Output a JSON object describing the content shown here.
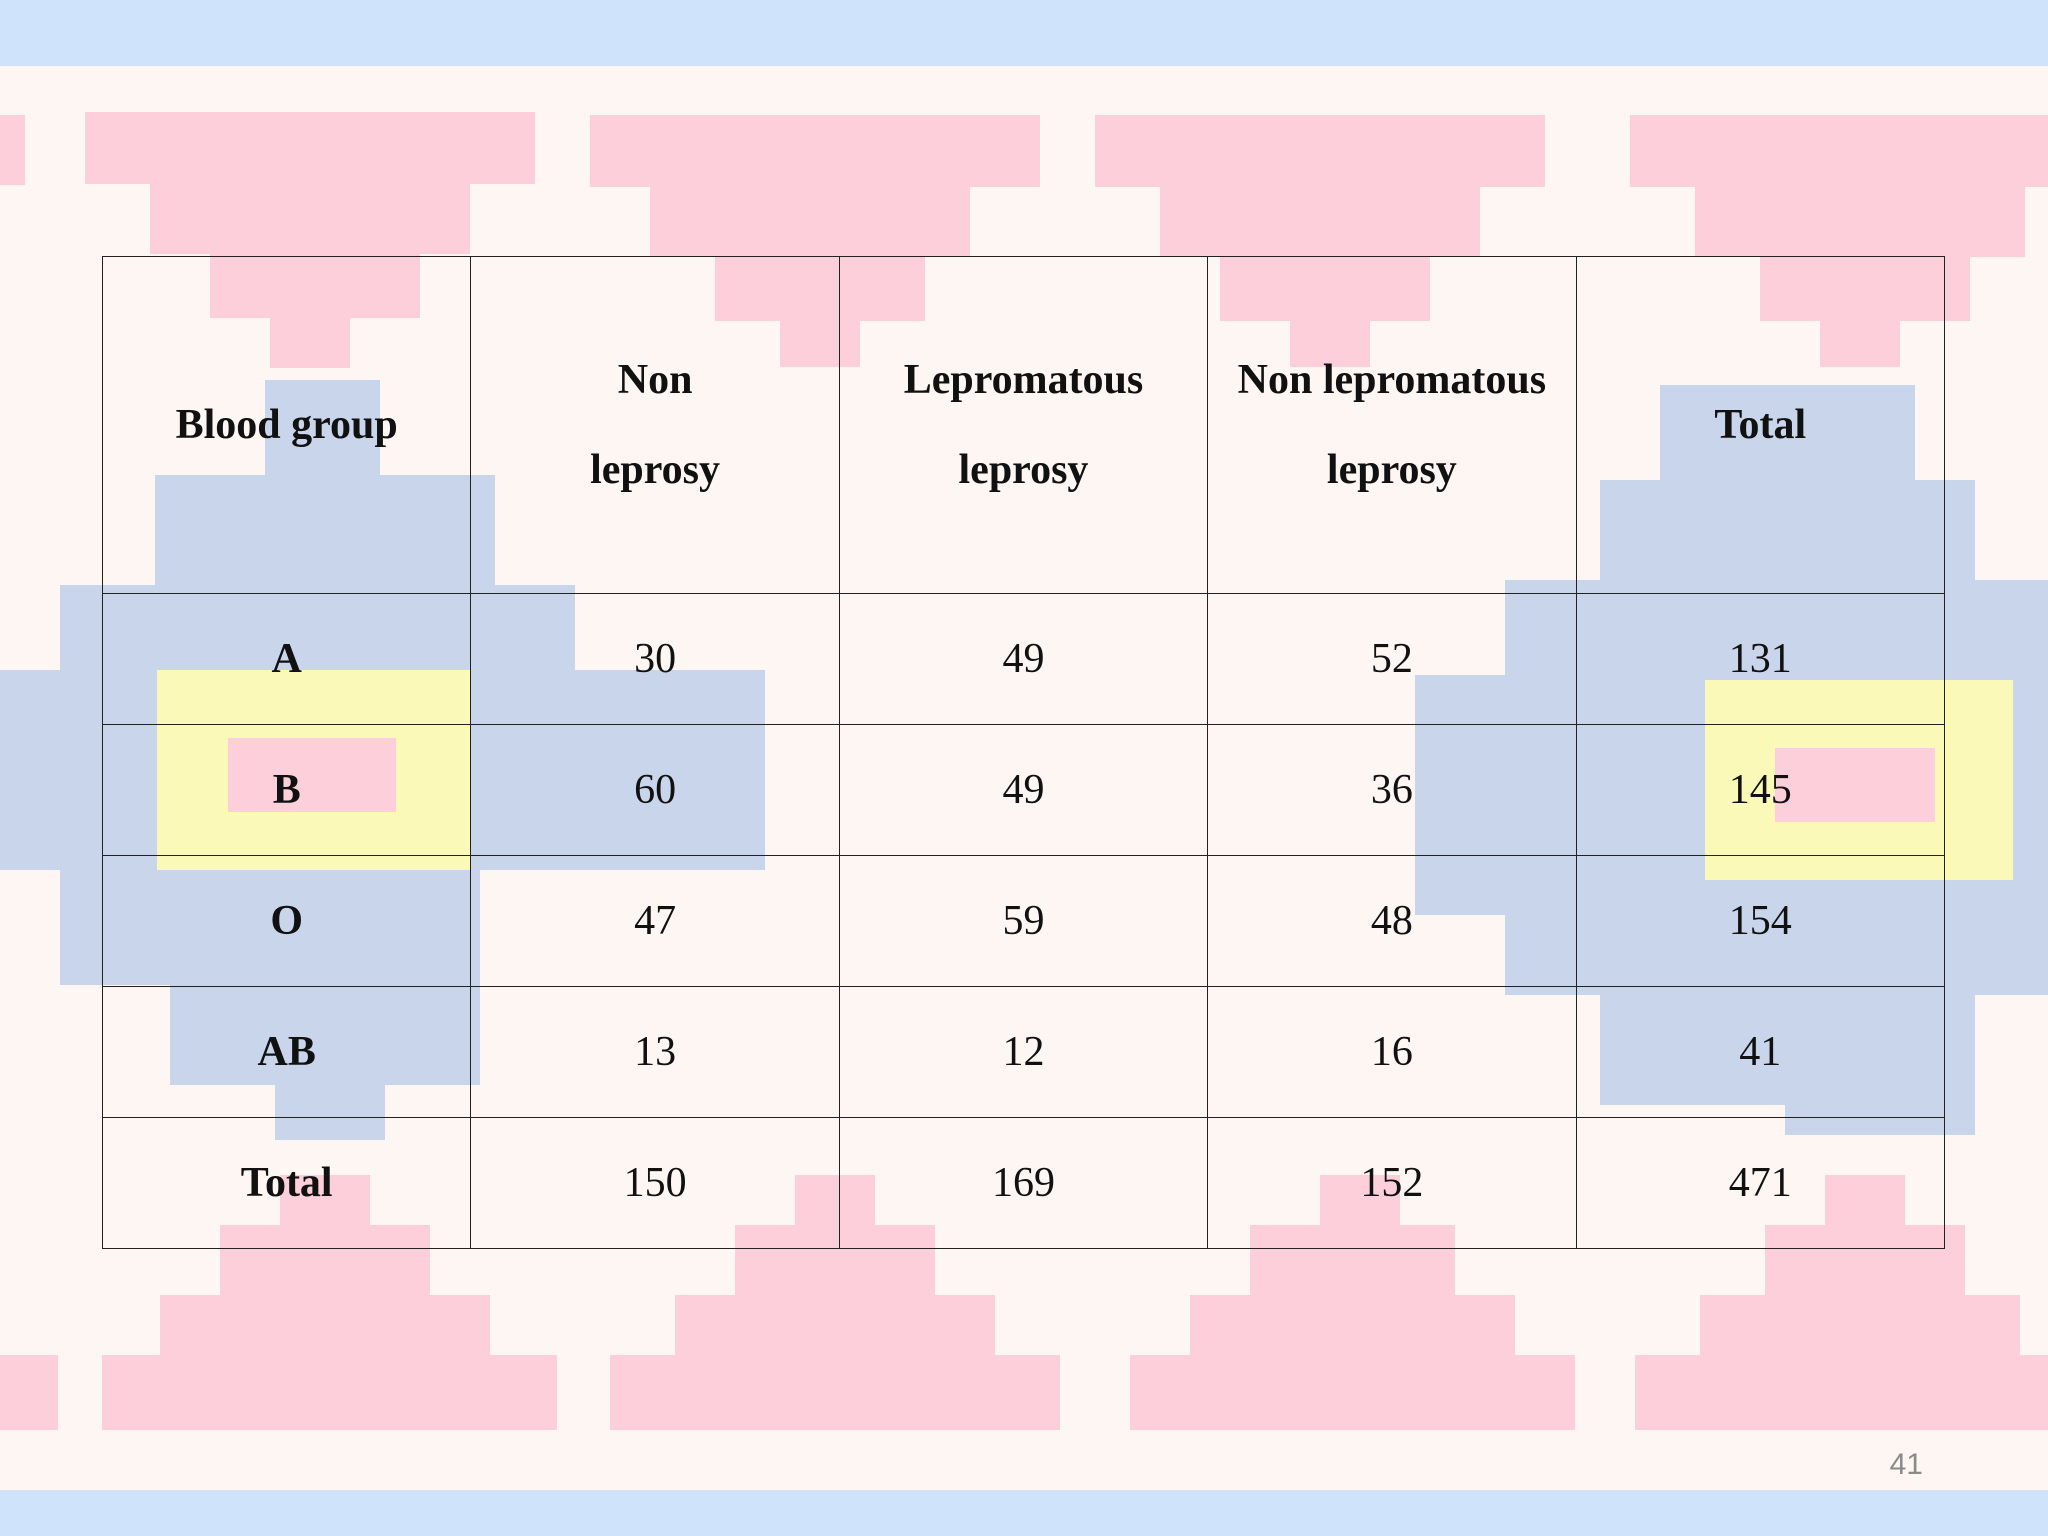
{
  "slide": {
    "page_number": "41",
    "colors": {
      "background": "#fdf6f2",
      "band": "#cfe4fb",
      "pink": "#fccfdb",
      "blue": "#c9d5ea",
      "yellow": "#fbf9b8"
    }
  },
  "table": {
    "headers": [
      {
        "line1": "Blood group",
        "line2": ""
      },
      {
        "line1": "Non",
        "line2": "leprosy"
      },
      {
        "line1": "Lepromatous",
        "line2": "leprosy"
      },
      {
        "line1": "Non lepromatous",
        "line2": "leprosy"
      },
      {
        "line1": "Total",
        "line2": ""
      }
    ],
    "rows": [
      {
        "label": "A",
        "values": [
          "30",
          "49",
          "52",
          "131"
        ]
      },
      {
        "label": "B",
        "values": [
          "60",
          "49",
          "36",
          "145"
        ]
      },
      {
        "label": "O",
        "values": [
          "47",
          "59",
          "48",
          "154"
        ]
      },
      {
        "label": "AB",
        "values": [
          "13",
          "12",
          "16",
          "41"
        ]
      }
    ],
    "total": {
      "label": "Total",
      "values": [
        "150",
        "169",
        "152",
        "471"
      ]
    }
  }
}
